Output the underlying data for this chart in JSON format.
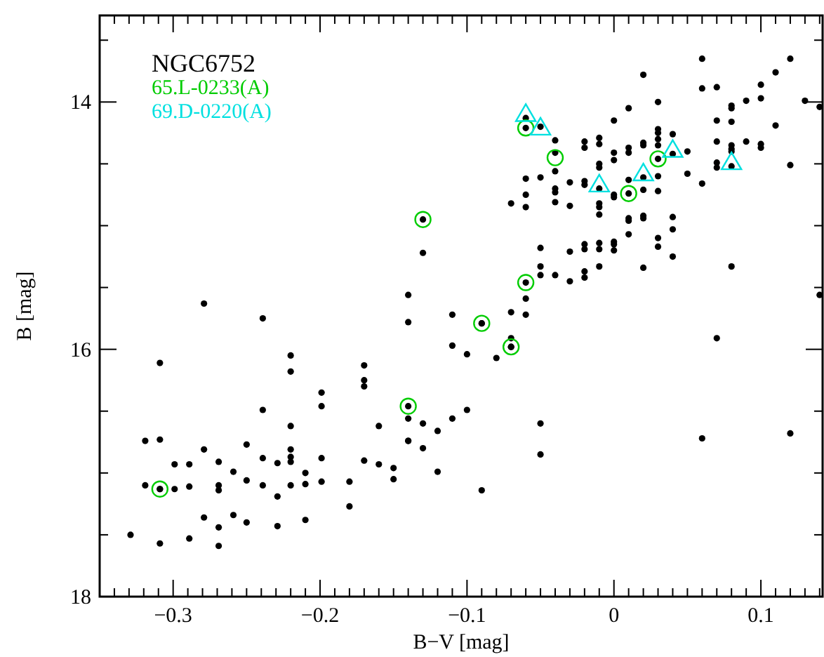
{
  "chart_data": {
    "type": "scatter",
    "title": "NGC6752",
    "xlabel": "B−V [mag]",
    "ylabel": "B [mag]",
    "xlim": [
      -0.35,
      0.142
    ],
    "ylim": [
      18,
      13.3
    ],
    "xticks": [
      -0.3,
      -0.2,
      -0.1,
      0,
      0.1,
      {
        "value": -0.34,
        "label": null
      },
      {
        "value": -0.33,
        "label": null
      },
      {
        "value": -0.32,
        "label": null
      },
      {
        "value": -0.31,
        "label": null
      },
      {
        "value": -0.29,
        "label": null
      },
      {
        "value": -0.28,
        "label": null
      },
      {
        "value": -0.27,
        "label": null
      },
      {
        "value": -0.26,
        "label": null
      },
      {
        "value": -0.25,
        "label": null
      },
      {
        "value": -0.24,
        "label": null
      },
      {
        "value": -0.23,
        "label": null
      },
      {
        "value": -0.22,
        "label": null
      },
      {
        "value": -0.21,
        "label": null
      },
      {
        "value": -0.19,
        "label": null
      },
      {
        "value": -0.18,
        "label": null
      },
      {
        "value": -0.17,
        "label": null
      },
      {
        "value": -0.16,
        "label": null
      },
      {
        "value": -0.15,
        "label": null
      },
      {
        "value": -0.14,
        "label": null
      },
      {
        "value": -0.13,
        "label": null
      },
      {
        "value": -0.12,
        "label": null
      },
      {
        "value": -0.11,
        "label": null
      },
      {
        "value": -0.09,
        "label": null
      },
      {
        "value": -0.08,
        "label": null
      },
      {
        "value": -0.07,
        "label": null
      },
      {
        "value": -0.06,
        "label": null
      },
      {
        "value": -0.05,
        "label": null
      },
      {
        "value": -0.04,
        "label": null
      },
      {
        "value": -0.03,
        "label": null
      },
      {
        "value": -0.02,
        "label": null
      },
      {
        "value": -0.01,
        "label": null
      },
      {
        "value": 0.01,
        "label": null
      },
      {
        "value": 0.02,
        "label": null
      },
      {
        "value": 0.03,
        "label": null
      },
      {
        "value": 0.04,
        "label": null
      },
      {
        "value": 0.05,
        "label": null
      },
      {
        "value": 0.06,
        "label": null
      },
      {
        "value": 0.07,
        "label": null
      },
      {
        "value": 0.08,
        "label": null
      },
      {
        "value": 0.09,
        "label": null
      },
      {
        "value": 0.11,
        "label": null
      },
      {
        "value": 0.12,
        "label": null
      },
      {
        "value": 0.13,
        "label": null
      },
      {
        "value": 0.14,
        "label": null
      }
    ],
    "yticks": [
      14,
      16,
      18,
      {
        "value": 13.5,
        "label": null
      },
      {
        "value": 14.5,
        "label": null
      },
      {
        "value": 15,
        "label": null
      },
      {
        "value": 15.5,
        "label": null
      },
      {
        "value": 16.5,
        "label": null
      },
      {
        "value": 17,
        "label": null
      },
      {
        "value": 17.5,
        "label": null
      }
    ],
    "grid": false,
    "legend": "top left",
    "series": [
      {
        "color": "#000000",
        "marker": "circle",
        "x": [
          -0.13,
          -0.14,
          -0.279,
          -0.239,
          -0.14,
          -0.11,
          -0.11,
          -0.309,
          -0.22,
          -0.22,
          -0.17,
          -0.17,
          -0.17,
          -0.199,
          -0.199,
          -0.239,
          -0.14,
          -0.11,
          -0.14,
          -0.13,
          -0.12,
          -0.16,
          -0.22,
          -0.319,
          -0.309,
          -0.279,
          -0.25,
          -0.22,
          -0.22,
          -0.22,
          -0.199,
          -0.239,
          -0.229,
          -0.299,
          -0.289,
          -0.269,
          -0.17,
          -0.16,
          -0.15,
          -0.14,
          -0.13,
          -0.12,
          -0.259,
          -0.21,
          -0.319,
          -0.309,
          -0.299,
          -0.289,
          -0.269,
          -0.269,
          -0.25,
          -0.239,
          -0.22,
          -0.21,
          -0.199,
          -0.18,
          -0.15,
          -0.229,
          -0.18,
          -0.279,
          -0.259,
          -0.25,
          -0.229,
          -0.21,
          -0.269,
          -0.329,
          -0.289,
          -0.309,
          -0.269,
          -0.1,
          -0.08,
          -0.07,
          -0.07,
          -0.09,
          0.07,
          -0.1,
          -0.05,
          -0.05,
          -0.09,
          0.06,
          0.12,
          0.06,
          0.12,
          0.02,
          0.11,
          0.06,
          0.07,
          0.1,
          0.1,
          0.09,
          0.13,
          0.14,
          0.03,
          0.01,
          0,
          0.08,
          0.08,
          0.07,
          0.08,
          0.11,
          -0.06,
          -0.05,
          -0.04,
          -0.04,
          -0.02,
          -0.02,
          -0.01,
          -0.01,
          -0.01,
          -0.01,
          0,
          0,
          0.01,
          0.01,
          0.02,
          0.02,
          0.03,
          0.03,
          0.03,
          0.03,
          0.03,
          0.04,
          0.04,
          0.05,
          0.07,
          0.08,
          0.08,
          0.08,
          0.09,
          0.1,
          0.1,
          0.07,
          0.07,
          0.08,
          0.12,
          -0.06,
          -0.05,
          -0.04,
          -0.03,
          -0.02,
          -0.02,
          -0.01,
          0,
          0,
          0.01,
          0.01,
          0.02,
          0.02,
          0.03,
          0.03,
          0.05,
          0.06,
          -0.07,
          -0.06,
          -0.06,
          -0.04,
          -0.04,
          -0.04,
          -0.03,
          -0.01,
          -0.01,
          -0.01,
          0.01,
          0.01,
          0.02,
          0.02,
          0.04,
          0.04,
          0.01,
          0.03,
          0.03,
          0.04,
          0,
          0,
          0,
          -0.01,
          -0.01,
          -0.02,
          -0.02,
          -0.03,
          -0.05,
          -0.05,
          -0.04,
          -0.03,
          -0.02,
          -0.02,
          -0.01,
          0.02,
          0.08,
          -0.05,
          -0.06,
          -0.06,
          -0.06,
          -0.07,
          0.14,
          -0.13,
          -0.06,
          -0.09,
          -0.07,
          -0.14,
          -0.309
        ],
        "values": [
          15.22,
          15.56,
          15.63,
          15.75,
          15.78,
          15.72,
          15.97,
          16.11,
          16.05,
          16.18,
          16.13,
          16.25,
          16.3,
          16.35,
          16.46,
          16.49,
          16.56,
          16.56,
          16.74,
          16.6,
          16.66,
          16.62,
          16.62,
          16.74,
          16.73,
          16.81,
          16.77,
          16.81,
          16.87,
          16.91,
          16.88,
          16.88,
          16.92,
          16.93,
          16.93,
          16.91,
          16.9,
          16.93,
          16.96,
          16.74,
          16.8,
          16.99,
          16.99,
          17,
          17.1,
          17.13,
          17.13,
          17.11,
          17.1,
          17.14,
          17.06,
          17.1,
          17.1,
          17.09,
          17.07,
          17.07,
          17.05,
          17.19,
          17.27,
          17.36,
          17.34,
          17.4,
          17.43,
          17.38,
          17.44,
          17.5,
          17.53,
          17.57,
          17.59,
          16.04,
          16.07,
          15.91,
          15.98,
          17.14,
          15.91,
          16.49,
          16.6,
          16.85,
          15.79,
          16.72,
          16.68,
          13.65,
          13.65,
          13.78,
          13.76,
          13.89,
          13.88,
          13.86,
          13.97,
          13.99,
          13.99,
          14.04,
          14,
          14.05,
          14.15,
          14.03,
          14.05,
          14.15,
          14.16,
          14.19,
          14.13,
          14.2,
          14.31,
          14.41,
          14.32,
          14.37,
          14.29,
          14.34,
          14.5,
          14.53,
          14.41,
          14.47,
          14.37,
          14.41,
          14.33,
          14.35,
          14.22,
          14.25,
          14.3,
          14.35,
          14.46,
          14.26,
          14.42,
          14.4,
          14.32,
          14.35,
          14.38,
          14.4,
          14.32,
          14.34,
          14.37,
          14.49,
          14.53,
          14.52,
          14.51,
          14.62,
          14.61,
          14.56,
          14.65,
          14.64,
          14.67,
          14.7,
          14.77,
          14.75,
          14.63,
          14.74,
          14.61,
          14.71,
          14.6,
          14.72,
          14.58,
          14.66,
          14.82,
          14.75,
          14.85,
          14.7,
          14.73,
          14.81,
          14.84,
          14.82,
          14.85,
          14.91,
          14.94,
          14.96,
          14.92,
          14.94,
          14.93,
          15.03,
          15.07,
          15.1,
          15.17,
          15.25,
          15.13,
          15.15,
          15.2,
          15.14,
          15.19,
          15.15,
          15.19,
          15.21,
          15.18,
          15.33,
          15.4,
          15.45,
          15.37,
          15.42,
          15.33,
          15.34,
          15.33,
          15.4,
          15.59,
          15.72,
          14.21,
          15.7,
          15.56,
          14.95,
          15.46,
          15.79,
          15.98,
          16.46,
          17.13
        ]
      },
      {
        "name": "65.L-0233(A)",
        "color": "#00cc00",
        "marker": "circle-open",
        "x": [
          -0.13,
          -0.06,
          -0.04,
          0.03,
          0.01,
          -0.06,
          -0.09,
          -0.07,
          -0.14,
          -0.309
        ],
        "values": [
          14.95,
          14.21,
          14.45,
          14.46,
          14.74,
          15.46,
          15.79,
          15.98,
          16.46,
          17.13
        ]
      },
      {
        "name": "69.D-0220(A)",
        "color": "#00e0e0",
        "marker": "triangle-open",
        "x": [
          -0.06,
          -0.05,
          0.04,
          0.08,
          -0.01,
          0.02
        ],
        "values": [
          14.12,
          14.23,
          14.41,
          14.51,
          14.69,
          14.6
        ]
      }
    ]
  }
}
